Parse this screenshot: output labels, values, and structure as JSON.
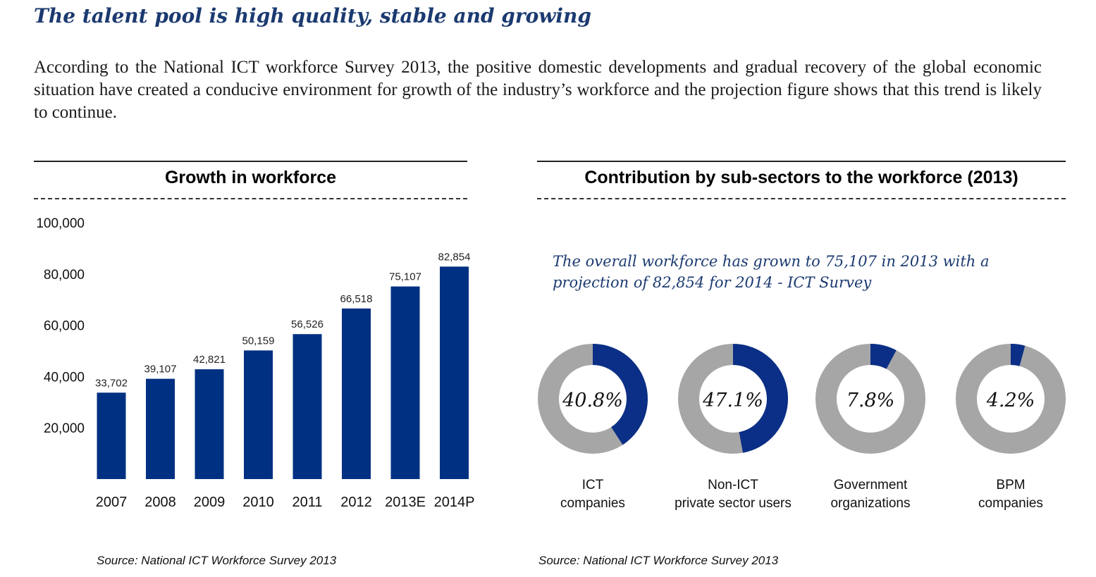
{
  "page": {
    "title": "The talent pool is high quality, stable and growing",
    "intro": "According to the National ICT workforce Survey 2013, the positive domestic developments and gradual recovery of the global economic situation have created a conducive environment for growth of the industry’s workforce and the projection figure shows that this trend is likely to continue."
  },
  "left_panel": {
    "title": "Growth in workforce",
    "source": "Source:  National ICT Workforce Survey 2013"
  },
  "right_panel": {
    "title": "Contribution by sub-sectors to the workforce (2013)",
    "note": "The overall workforce has grown to 75,107 in 2013 with a projection of 82,854 for 2014 - ICT Survey",
    "source": "Source: National ICT Workforce Survey 2013"
  },
  "colors": {
    "bar": "#003082",
    "accent": "#1b3a70",
    "donut_fill": "#0b2f86",
    "donut_rest": "#a6a6a6"
  },
  "chart_data": [
    {
      "type": "bar",
      "title": "Growth in workforce",
      "categories": [
        "2007",
        "2008",
        "2009",
        "2010",
        "2011",
        "2012",
        "2013E",
        "2014P"
      ],
      "values": [
        33702,
        39107,
        42821,
        50159,
        56526,
        66518,
        75107,
        82854
      ],
      "value_labels": [
        "33,702",
        "39,107",
        "42,821",
        "50,159",
        "56,526",
        "66,518",
        "75,107",
        "82,854"
      ],
      "yticks": [
        "20,000",
        "40,000",
        "60,000",
        "80,000",
        "100,000"
      ],
      "ytick_values": [
        20000,
        40000,
        60000,
        80000,
        100000
      ],
      "ylim": [
        0,
        100000
      ],
      "grid": false
    },
    {
      "type": "pie",
      "title": "Contribution by sub-sectors to the workforce (2013)",
      "items": [
        {
          "label_line1": "ICT",
          "label_line2": "companies",
          "value": 40.8,
          "text": "40.8%"
        },
        {
          "label_line1": "Non-ICT",
          "label_line2": "private sector users",
          "value": 47.1,
          "text": "47.1%"
        },
        {
          "label_line1": "Government",
          "label_line2": "organizations",
          "value": 7.8,
          "text": "7.8%"
        },
        {
          "label_line1": "BPM",
          "label_line2": "companies",
          "value": 4.2,
          "text": "4.2%"
        }
      ]
    }
  ]
}
